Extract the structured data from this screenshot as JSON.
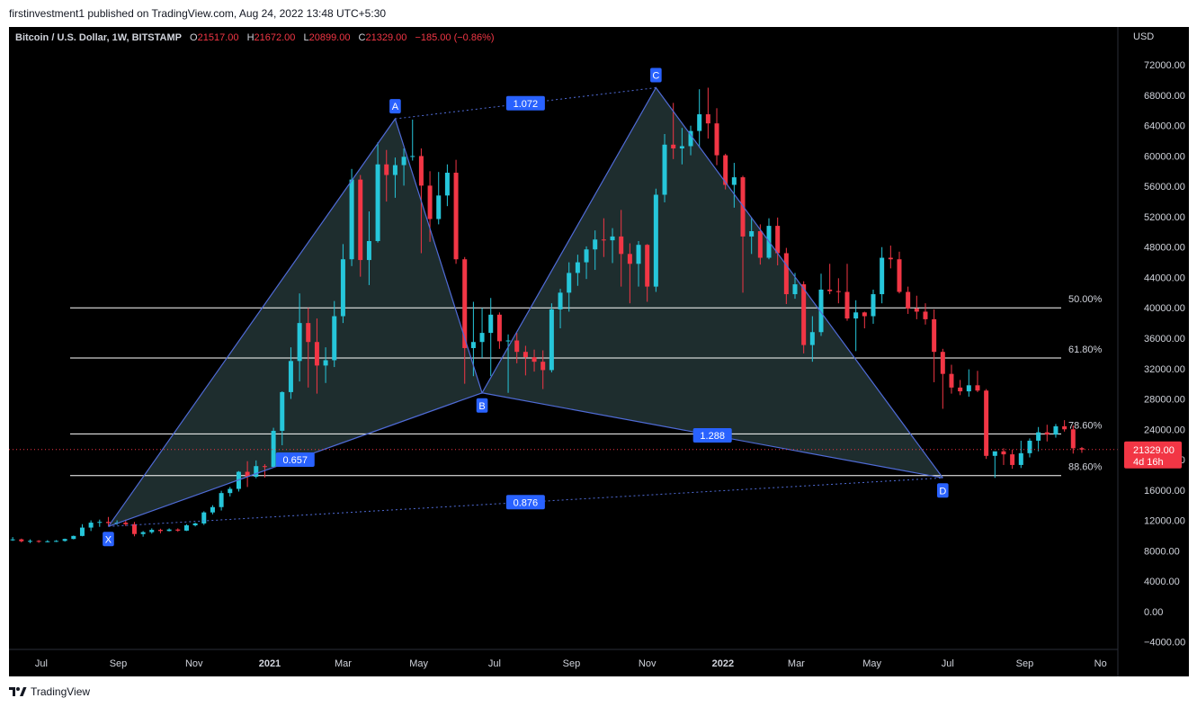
{
  "header": {
    "published_by": "firstinvestment1 published on TradingView.com, Aug 24, 2022 13:48 UTC+5:30"
  },
  "footer": {
    "brand": "TradingView"
  },
  "symbol": {
    "name": "Bitcoin / U.S. Dollar, 1W, BITSTAMP",
    "o_label": "O",
    "o_value": "21517.00",
    "h_label": "H",
    "h_value": "21672.00",
    "l_label": "L",
    "l_value": "20899.00",
    "c_label": "C",
    "c_value": "21329.00",
    "change": "−185.00 (−0.86%)"
  },
  "colors": {
    "up": "#26c6da",
    "down": "#f23645",
    "pattern_line": "#4f6bd6",
    "pattern_fill": "#233536",
    "label_bg": "#2962ff",
    "fib_line": "#ffffff",
    "price_tag": "#f23645"
  },
  "chart_data": {
    "type": "candlestick",
    "currency": "USD",
    "last_price": "21329.00",
    "countdown": "4d 16h",
    "y_ticks": [
      72000,
      68000,
      64000,
      60000,
      56000,
      52000,
      48000,
      44000,
      40000,
      36000,
      32000,
      28000,
      24000,
      20000,
      16000,
      12000,
      8000,
      4000,
      0,
      -4000
    ],
    "y_tick_labels": [
      "72000.00",
      "68000.00",
      "64000.00",
      "60000.00",
      "56000.00",
      "52000.00",
      "48000.00",
      "44000.00",
      "40000.00",
      "36000.00",
      "32000.00",
      "28000.00",
      "24000.00",
      "20000.00",
      "16000.00",
      "12000.00",
      "8000.00",
      "4000.00",
      "0.00",
      "−4000.00"
    ],
    "ylim": [
      -5000,
      77000
    ],
    "x_ticks": [
      {
        "label": "Jul",
        "date": "2020-07-01",
        "bold": false
      },
      {
        "label": "Sep",
        "date": "2020-09-01",
        "bold": false
      },
      {
        "label": "Nov",
        "date": "2020-11-01",
        "bold": false
      },
      {
        "label": "2021",
        "date": "2021-01-01",
        "bold": true
      },
      {
        "label": "Mar",
        "date": "2021-03-01",
        "bold": false
      },
      {
        "label": "May",
        "date": "2021-05-01",
        "bold": false
      },
      {
        "label": "Jul",
        "date": "2021-07-01",
        "bold": false
      },
      {
        "label": "Sep",
        "date": "2021-09-01",
        "bold": false
      },
      {
        "label": "Nov",
        "date": "2021-11-01",
        "bold": false
      },
      {
        "label": "2022",
        "date": "2022-01-01",
        "bold": true
      },
      {
        "label": "Mar",
        "date": "2022-03-01",
        "bold": false
      },
      {
        "label": "May",
        "date": "2022-05-01",
        "bold": false
      },
      {
        "label": "Jul",
        "date": "2022-07-01",
        "bold": false
      },
      {
        "label": "Sep",
        "date": "2022-09-01",
        "bold": false
      },
      {
        "label": "No",
        "date": "2022-11-01",
        "bold": false
      }
    ],
    "xlim": [
      "2020-06-05",
      "2022-11-15"
    ],
    "candles_start": "2020-06-08",
    "candles": [
      [
        9400,
        9800,
        9300,
        9500
      ],
      [
        9500,
        9600,
        9100,
        9250
      ],
      [
        9250,
        9500,
        9000,
        9300
      ],
      [
        9300,
        9400,
        9050,
        9200
      ],
      [
        9200,
        9400,
        9100,
        9250
      ],
      [
        9250,
        9400,
        9150,
        9300
      ],
      [
        9300,
        9600,
        9200,
        9550
      ],
      [
        9550,
        10000,
        9500,
        9950
      ],
      [
        9950,
        11500,
        9900,
        11050
      ],
      [
        11050,
        12000,
        10600,
        11700
      ],
      [
        11700,
        12100,
        11150,
        11800
      ],
      [
        11800,
        12450,
        11300,
        11650
      ],
      [
        11650,
        12000,
        11400,
        11700
      ],
      [
        11700,
        12100,
        11250,
        11500
      ],
      [
        11500,
        11800,
        9900,
        10200
      ],
      [
        10200,
        10600,
        9850,
        10450
      ],
      [
        10450,
        10950,
        10250,
        10750
      ],
      [
        10750,
        10900,
        10300,
        10600
      ],
      [
        10600,
        10950,
        10550,
        10800
      ],
      [
        10800,
        10950,
        10500,
        10650
      ],
      [
        10650,
        11500,
        10600,
        11350
      ],
      [
        11350,
        11700,
        11200,
        11600
      ],
      [
        11600,
        13200,
        11400,
        13050
      ],
      [
        13050,
        14000,
        12800,
        13750
      ],
      [
        13750,
        15900,
        13300,
        15600
      ],
      [
        15600,
        16400,
        15150,
        16150
      ],
      [
        16150,
        18500,
        15800,
        18400
      ],
      [
        18400,
        19800,
        16400,
        17750
      ],
      [
        17750,
        19900,
        17550,
        19150
      ],
      [
        19150,
        19400,
        17650,
        19050
      ],
      [
        19050,
        24200,
        19000,
        23800
      ],
      [
        23800,
        29000,
        21900,
        28900
      ],
      [
        28900,
        34800,
        28000,
        33000
      ],
      [
        33000,
        41900,
        30300,
        38000
      ],
      [
        38000,
        40000,
        29500,
        35500
      ],
      [
        35500,
        38600,
        28700,
        32400
      ],
      [
        32400,
        34800,
        30100,
        33100
      ],
      [
        33100,
        40900,
        32200,
        38900
      ],
      [
        38900,
        48400,
        38000,
        46400
      ],
      [
        46400,
        58300,
        45500,
        56900
      ],
      [
        56900,
        57500,
        44100,
        46300
      ],
      [
        46300,
        52700,
        43000,
        48800
      ],
      [
        48800,
        61800,
        48600,
        58900
      ],
      [
        58900,
        60800,
        54000,
        57500
      ],
      [
        57500,
        59800,
        54500,
        58800
      ],
      [
        58800,
        61000,
        56100,
        59900
      ],
      [
        59900,
        64800,
        59400,
        60000
      ],
      [
        60000,
        61000,
        47200,
        56100
      ],
      [
        56100,
        58000,
        48700,
        51700
      ],
      [
        51700,
        57900,
        51000,
        54800
      ],
      [
        54800,
        58900,
        53400,
        57800
      ],
      [
        57800,
        59500,
        45800,
        46400
      ],
      [
        46400,
        46700,
        30000,
        34700
      ],
      [
        34700,
        40800,
        31000,
        35500
      ],
      [
        35500,
        40000,
        33400,
        36700
      ],
      [
        36700,
        41300,
        31000,
        39100
      ],
      [
        39100,
        39400,
        34600,
        35600
      ],
      [
        35600,
        36500,
        28800,
        35700
      ],
      [
        35700,
        36700,
        32700,
        34200
      ],
      [
        34200,
        35000,
        31100,
        33500
      ],
      [
        33500,
        34500,
        31600,
        32900
      ],
      [
        32900,
        34400,
        29300,
        31800
      ],
      [
        31800,
        40600,
        31500,
        39800
      ],
      [
        39800,
        42500,
        37300,
        42000
      ],
      [
        42000,
        46000,
        39500,
        44600
      ],
      [
        44600,
        47000,
        42900,
        46000
      ],
      [
        46000,
        48100,
        43800,
        47700
      ],
      [
        47700,
        50200,
        45000,
        49000
      ],
      [
        49000,
        51800,
        46700,
        48900
      ],
      [
        48900,
        50500,
        45900,
        49400
      ],
      [
        49400,
        52900,
        42800,
        47100
      ],
      [
        47100,
        48500,
        40600,
        45800
      ],
      [
        45800,
        48800,
        42800,
        48300
      ],
      [
        48300,
        48400,
        40800,
        42800
      ],
      [
        42800,
        55700,
        42100,
        54900
      ],
      [
        54900,
        62900,
        53900,
        61500
      ],
      [
        61500,
        67000,
        59600,
        61000
      ],
      [
        61000,
        63700,
        58900,
        61300
      ],
      [
        61300,
        64000,
        60100,
        63300
      ],
      [
        63300,
        68800,
        61100,
        65500
      ],
      [
        65500,
        69000,
        62300,
        64300
      ],
      [
        64300,
        66300,
        58800,
        60100
      ],
      [
        60100,
        60300,
        55600,
        56200
      ],
      [
        56200,
        59100,
        53200,
        57200
      ],
      [
        57200,
        57400,
        42000,
        49400
      ],
      [
        49400,
        51900,
        47100,
        50100
      ],
      [
        50100,
        51000,
        45700,
        46600
      ],
      [
        46600,
        51800,
        46400,
        50800
      ],
      [
        50800,
        51900,
        45600,
        47200
      ],
      [
        47200,
        47900,
        40500,
        41800
      ],
      [
        41800,
        44600,
        41200,
        43100
      ],
      [
        43100,
        43500,
        34000,
        35100
      ],
      [
        35100,
        38900,
        32900,
        36800
      ],
      [
        36800,
        44500,
        36300,
        42400
      ],
      [
        42400,
        45800,
        41800,
        42200
      ],
      [
        42200,
        43900,
        40600,
        42100
      ],
      [
        42100,
        45800,
        38300,
        38600
      ],
      [
        38600,
        41000,
        34300,
        39400
      ],
      [
        39400,
        39500,
        37300,
        38900
      ],
      [
        38900,
        42400,
        37900,
        41800
      ],
      [
        41800,
        48000,
        40600,
        46600
      ],
      [
        46600,
        48200,
        45200,
        46400
      ],
      [
        46400,
        47400,
        41900,
        42100
      ],
      [
        42100,
        42800,
        39200,
        39900
      ],
      [
        39900,
        41600,
        38500,
        39500
      ],
      [
        39500,
        40600,
        37800,
        38500
      ],
      [
        38500,
        39800,
        30200,
        34200
      ],
      [
        34200,
        34600,
        26700,
        31300
      ],
      [
        31300,
        32500,
        28700,
        29500
      ],
      [
        29500,
        30500,
        28500,
        29000
      ],
      [
        29000,
        31900,
        28300,
        29800
      ],
      [
        29800,
        31700,
        28900,
        29100
      ],
      [
        29100,
        29300,
        20100,
        20500
      ],
      [
        20500,
        21000,
        17600,
        21100
      ],
      [
        21100,
        21500,
        19300,
        20700
      ],
      [
        20700,
        21300,
        18800,
        19300
      ],
      [
        19300,
        22500,
        18900,
        20850
      ],
      [
        20850,
        22800,
        20300,
        22500
      ],
      [
        22500,
        24300,
        21100,
        23600
      ],
      [
        23600,
        24600,
        22400,
        23300
      ],
      [
        23300,
        24700,
        22900,
        24400
      ],
      [
        24400,
        25200,
        23700,
        24000
      ],
      [
        24000,
        24500,
        20800,
        21500
      ],
      [
        21517,
        21672,
        20899,
        21329
      ]
    ],
    "fib_levels": [
      {
        "label": "50.00%",
        "price": 40000
      },
      {
        "label": "61.80%",
        "price": 33400
      },
      {
        "label": "78.60%",
        "price": 23400
      },
      {
        "label": "88.60%",
        "price": 17900
      }
    ],
    "harmonic_points": [
      {
        "label": "X",
        "date": "2020-08-24",
        "price": 11200
      },
      {
        "label": "A",
        "date": "2021-04-12",
        "price": 64900
      },
      {
        "label": "B",
        "date": "2021-06-21",
        "price": 28800
      },
      {
        "label": "C",
        "date": "2021-11-08",
        "price": 69000
      },
      {
        "label": "D",
        "date": "2022-06-27",
        "price": 17600
      }
    ],
    "ratios": [
      {
        "label": "1.072",
        "between": [
          "A",
          "C"
        ]
      },
      {
        "label": "0.657",
        "between": [
          "X",
          "B"
        ]
      },
      {
        "label": "1.288",
        "between": [
          "B",
          "D"
        ]
      },
      {
        "label": "0.876",
        "between": [
          "X",
          "D"
        ]
      }
    ]
  }
}
